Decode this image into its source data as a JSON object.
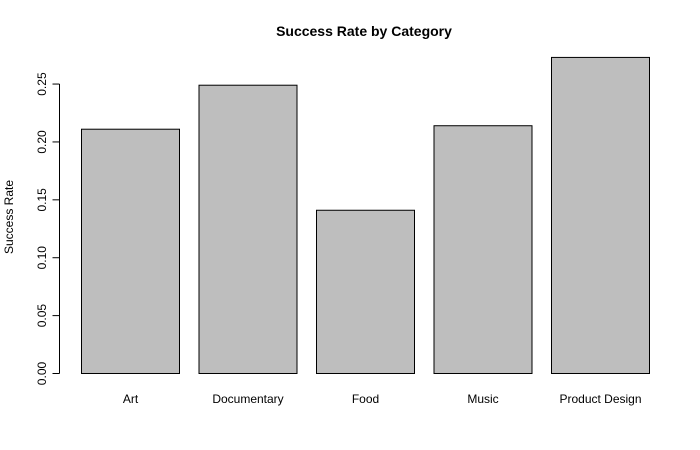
{
  "chart_data": {
    "type": "bar",
    "title": "Success Rate by Category",
    "xlabel": "",
    "ylabel": "Success Rate",
    "categories": [
      "Art",
      "Documentary",
      "Food",
      "Music",
      "Product Design"
    ],
    "values": [
      0.211,
      0.249,
      0.141,
      0.214,
      0.273
    ],
    "ylim": [
      0,
      0.25
    ],
    "yticks": [
      "0.00",
      "0.05",
      "0.10",
      "0.15",
      "0.20",
      "0.25"
    ],
    "grid": false,
    "legend": "none",
    "colors": {
      "bar_fill": "#bebebe",
      "bar_stroke": "#000000",
      "background": "#ffffff",
      "text": "#000000"
    }
  }
}
